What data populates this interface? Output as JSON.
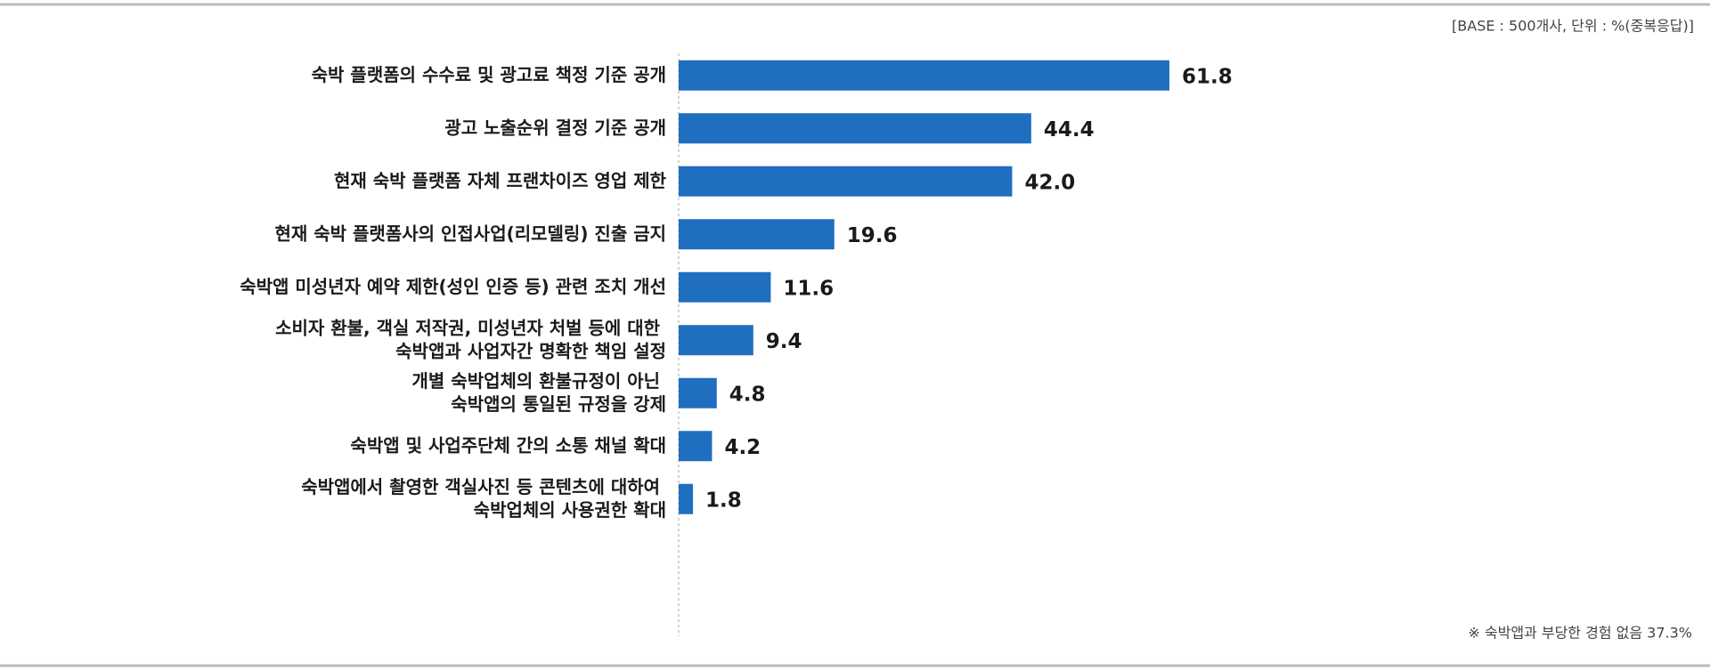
{
  "chart_data": {
    "type": "barh",
    "note": "[BASE : 500개사, 단위 : %(중복응답)]",
    "footnote": "※ 숙박앱과 부당한 경험 없음 37.3%",
    "categories": [
      "숙박 플랫폼의 수수료 및 광고료 책정 기준 공개",
      "광고 노출순위 결정 기준 공개",
      "현재 숙박 플랫폼 자체 프랜차이즈 영업 제한",
      "현재 숙박 플랫폼사의 인접사업(리모델링) 진출 금지",
      "숙박앱 미성년자 예약 제한(성인 인증 등) 관련 조치 개선",
      "소비자 환불, 객실 저작권, 미성년자 처벌 등에 대한\n숙박앱과 사업자간 명확한 책임 설정",
      "개별 숙박업체의 환불규정이 아닌\n숙박앱의 통일된 규정을 강제",
      "숙박앱 및 사업주단체 간의 소통 채널 확대",
      "숙박앱에서 촬영한 객실사진 등 콘텐츠에 대하여\n숙박업체의 사용권한 확대"
    ],
    "values": [
      61.8,
      44.4,
      42.0,
      19.6,
      11.6,
      9.4,
      4.8,
      4.2,
      1.8
    ],
    "value_labels": [
      "61.8",
      "44.4",
      "42.0",
      "19.6",
      "11.6",
      "9.4",
      "4.8",
      "4.2",
      "1.8"
    ],
    "color": "#1f6ec0"
  }
}
